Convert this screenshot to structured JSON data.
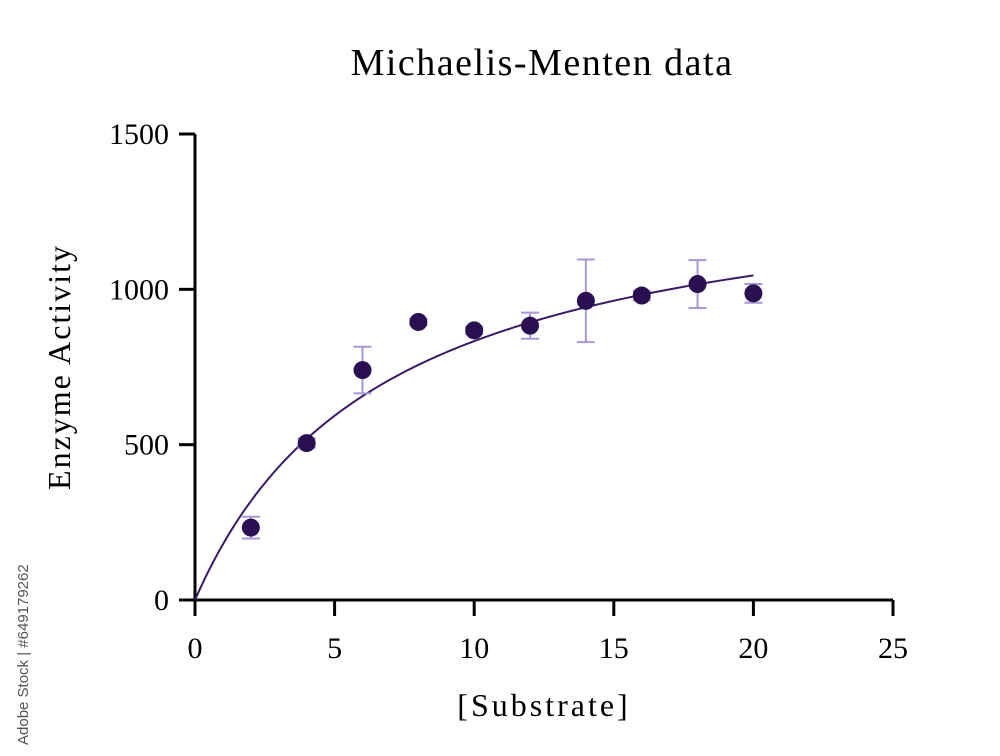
{
  "chart_data": {
    "type": "scatter",
    "title": "Michaelis-Menten data",
    "xlabel": "[Substrate]",
    "ylabel": "Enzyme Activity",
    "xlim": [
      0,
      25
    ],
    "ylim": [
      0,
      1500
    ],
    "xticks": [
      0,
      5,
      10,
      15,
      20,
      25
    ],
    "yticks": [
      0,
      500,
      1000,
      1500
    ],
    "grid": false,
    "colors": {
      "points": "#2a1050",
      "curve": "#3b1a64",
      "error_bars": "#a995d8"
    },
    "series": [
      {
        "x": [
          2,
          4,
          6,
          8,
          10,
          12,
          14,
          16,
          18,
          20
        ],
        "y": [
          233,
          505,
          740,
          895,
          868,
          883,
          963,
          980,
          1017,
          987
        ],
        "error": [
          35,
          15,
          75,
          10,
          12,
          42,
          133,
          15,
          77,
          30
        ]
      }
    ],
    "fit": {
      "model": "michaelis-menten",
      "vmax": 1400,
      "km": 6.8,
      "x_range": [
        0,
        20
      ]
    }
  },
  "credit": "Adobe Stock | #649179262"
}
